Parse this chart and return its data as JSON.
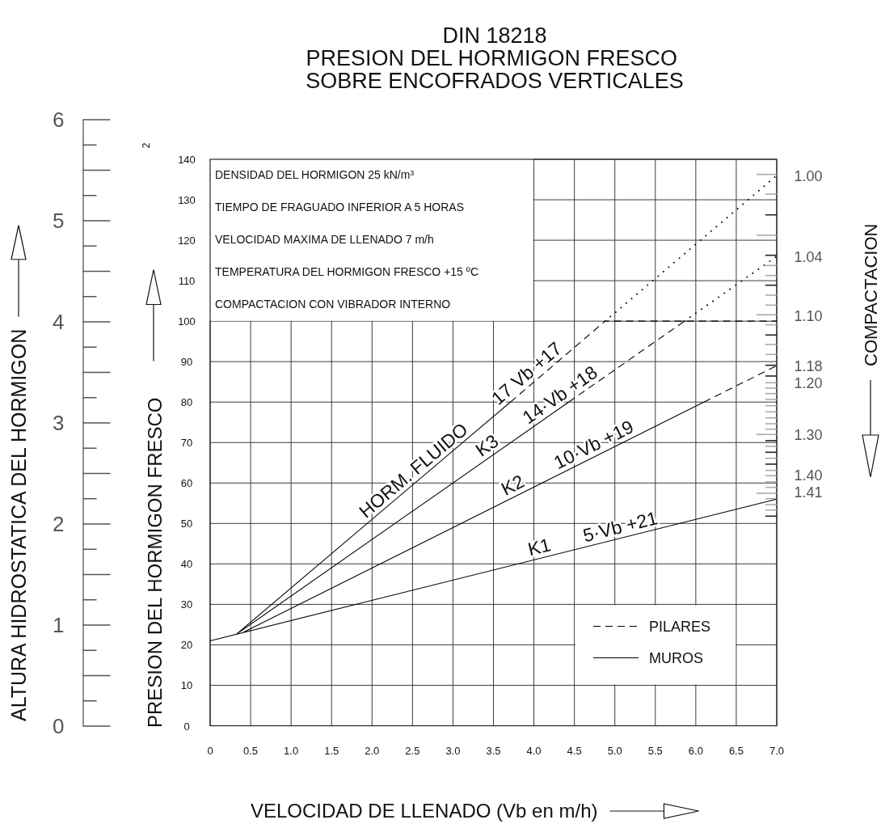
{
  "chart_data": {
    "type": "line",
    "title": "DIN 18218",
    "subtitle": "PRESION DEL HORMIGON FRESCO SOBRE ENCOFRADOS VERTICALES",
    "xlabel": "VELOCIDAD DE LLENADO (Vb en m/h)",
    "ylabel": "PRESION DEL HORMIGON FRESCO",
    "y2label": "ALTURA HIDROSTATICA DEL HORMIGON",
    "y3label": "COMPACTACION",
    "xlim": [
      0,
      7
    ],
    "xticks": [
      0,
      0.5,
      {
        "value": 1,
        "label": "1.0"
      },
      1.5,
      {
        "value": 2,
        "label": "2.0"
      },
      2.5,
      {
        "value": 3,
        "label": "3.0"
      },
      3.5,
      {
        "value": 4,
        "label": "4.0"
      },
      4.5,
      {
        "value": 5,
        "label": "5.0"
      },
      5.5,
      {
        "value": 6,
        "label": "6.0"
      },
      6.5,
      {
        "value": 7,
        "label": "7.0"
      }
    ],
    "ylim": [
      0,
      140
    ],
    "yticks": [
      0,
      10,
      20,
      30,
      40,
      50,
      60,
      70,
      80,
      90,
      100,
      110,
      120,
      130,
      140
    ],
    "y2lim": [
      0,
      6
    ],
    "y2ticks": [
      0,
      1,
      2,
      3,
      4,
      5,
      6
    ],
    "grid": true,
    "legend": "bottom right",
    "series": [
      {
        "name": "PILARES",
        "color": "#000000",
        "line_style": "dashed",
        "x": [
          3.71,
          4.88,
          7,
          null,
          4.43,
          5.86,
          null,
          6.1,
          7
        ],
        "values": [
          80,
          100,
          100,
          null,
          80,
          100,
          null,
          80,
          89
        ]
      },
      {
        "name": "MUROS",
        "color": "#000000",
        "line_style": "solid",
        "x": [
          0,
          7,
          null,
          0.4,
          6.1,
          null,
          0.33,
          4.43,
          null,
          0.33,
          3.71
        ],
        "values": [
          21,
          56,
          null,
          23,
          80,
          null,
          22.7,
          80,
          null,
          22.7,
          80
        ]
      },
      {
        "color": "#000000",
        "line_style": "dotted",
        "x": [
          4.88,
          7,
          null,
          5.86,
          7
        ],
        "values": [
          100,
          136,
          null,
          100,
          116
        ]
      }
    ],
    "annotations": [
      "DENSIDAD DEL HORMIGON 25 kN/m³",
      "TIEMPO DE FRAGUADO INFERIOR A 5 HORAS",
      "VELOCIDAD MAXIMA DE LLENADO 7 m/h",
      "TEMPERATURA DEL HORMIGON FRESCO +15 ºC",
      "COMPACTACION CON VIBRADOR INTERNO",
      "2",
      {
        "text": "HORM. FLUIDO",
        "x": 2.6,
        "y": 61
      },
      {
        "text": "17 Vb +17",
        "x": 4.0,
        "y": 85
      },
      {
        "text": "K3",
        "x": 3.5,
        "y": 67
      },
      {
        "text": "14·Vb +18",
        "x": 4.4,
        "y": 79.5
      },
      {
        "text": "K2",
        "x": 3.8,
        "y": 57
      },
      {
        "text": "10·Vb +19",
        "x": 4.8,
        "y": 67
      },
      {
        "text": "K1",
        "x": 4.1,
        "y": 41.5
      },
      {
        "text": "5·Vb +21",
        "x": 5.1,
        "y": 46.5
      },
      {
        "text": "1.00",
        "x": 7,
        "y": 136
      },
      {
        "text": "1.04",
        "x": 7,
        "y": 116
      },
      "1.10",
      {
        "text": "1.18",
        "x": 7,
        "y": 89
      },
      "1.20",
      "1.30",
      "1.40",
      "1.41"
    ]
  }
}
